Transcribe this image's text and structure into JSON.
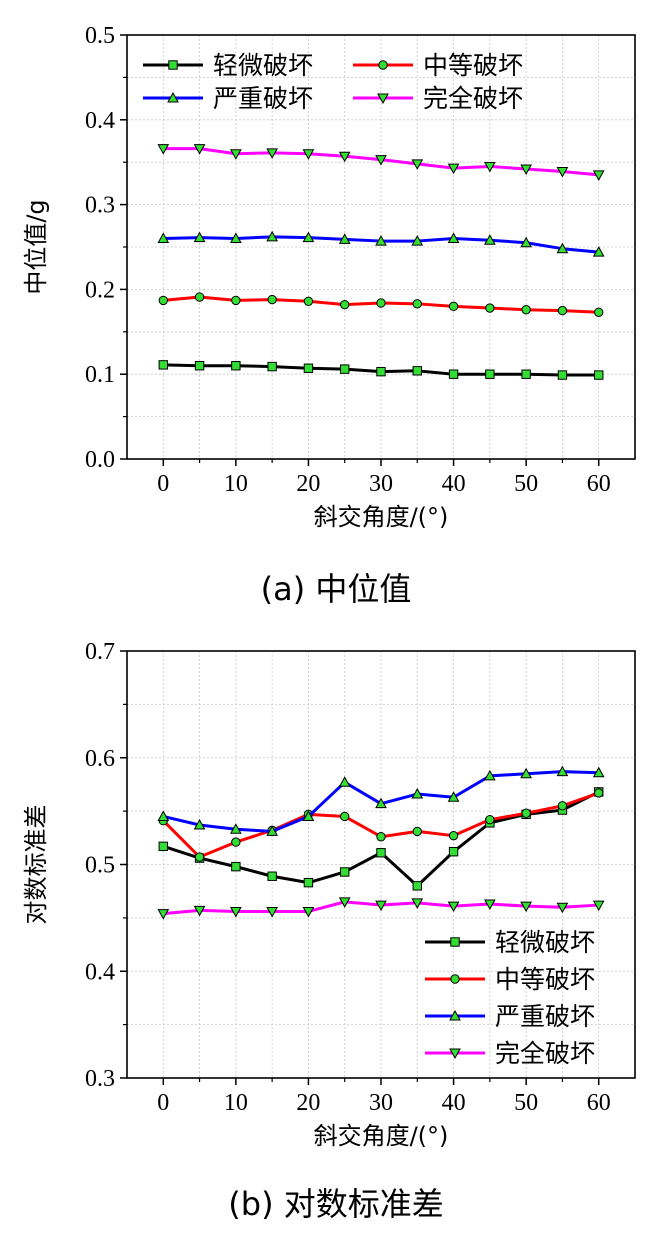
{
  "chart_data": [
    {
      "type": "line",
      "panel": "a",
      "caption": "(a)  中位值",
      "xlabel": "斜交角度/(°)",
      "ylabel": "中位值/g",
      "xlim": [
        -5,
        65
      ],
      "ylim": [
        0.0,
        0.5
      ],
      "xticks": [
        0,
        10,
        20,
        30,
        40,
        50,
        60
      ],
      "yticks": [
        0.0,
        0.1,
        0.2,
        0.3,
        0.4,
        0.5
      ],
      "ytick_labels": [
        "0.0",
        "0.1",
        "0.2",
        "0.3",
        "0.4",
        "0.5"
      ],
      "grid": true,
      "legend_position": "top",
      "legend_columns": 2,
      "x": [
        0,
        5,
        10,
        15,
        20,
        25,
        30,
        35,
        40,
        45,
        50,
        55,
        60
      ],
      "series": [
        {
          "name": "轻微破坏",
          "color": "#000000",
          "marker": "square",
          "values": [
            0.111,
            0.11,
            0.11,
            0.109,
            0.107,
            0.106,
            0.103,
            0.104,
            0.1,
            0.1,
            0.1,
            0.099,
            0.099
          ]
        },
        {
          "name": "中等破坏",
          "color": "#ff0000",
          "marker": "circle",
          "values": [
            0.187,
            0.191,
            0.187,
            0.188,
            0.186,
            0.182,
            0.184,
            0.183,
            0.18,
            0.178,
            0.176,
            0.175,
            0.173
          ]
        },
        {
          "name": "严重破坏",
          "color": "#0000ff",
          "marker": "triangle-up",
          "values": [
            0.26,
            0.261,
            0.26,
            0.262,
            0.261,
            0.259,
            0.257,
            0.257,
            0.26,
            0.258,
            0.255,
            0.248,
            0.244
          ]
        },
        {
          "name": "完全破坏",
          "color": "#ff00ff",
          "marker": "triangle-down",
          "values": [
            0.366,
            0.366,
            0.36,
            0.361,
            0.36,
            0.357,
            0.353,
            0.348,
            0.343,
            0.345,
            0.342,
            0.339,
            0.335
          ]
        }
      ]
    },
    {
      "type": "line",
      "panel": "b",
      "caption": "(b)  对数标准差",
      "xlabel": "斜交角度/(°)",
      "ylabel": "对数标准差",
      "xlim": [
        -5,
        65
      ],
      "ylim": [
        0.3,
        0.7
      ],
      "xticks": [
        0,
        10,
        20,
        30,
        40,
        50,
        60
      ],
      "yticks": [
        0.3,
        0.4,
        0.5,
        0.6,
        0.7
      ],
      "ytick_labels": [
        "0.3",
        "0.4",
        "0.5",
        "0.6",
        "0.7"
      ],
      "grid": true,
      "legend_position": "bottom-right",
      "legend_columns": 1,
      "x": [
        0,
        5,
        10,
        15,
        20,
        25,
        30,
        35,
        40,
        45,
        50,
        55,
        60
      ],
      "series": [
        {
          "name": "轻微破坏",
          "color": "#000000",
          "marker": "square",
          "values": [
            0.517,
            0.506,
            0.498,
            0.489,
            0.483,
            0.493,
            0.511,
            0.48,
            0.512,
            0.539,
            0.547,
            0.551,
            0.568
          ]
        },
        {
          "name": "中等破坏",
          "color": "#ff0000",
          "marker": "circle",
          "values": [
            0.541,
            0.507,
            0.521,
            0.532,
            0.547,
            0.545,
            0.526,
            0.531,
            0.527,
            0.542,
            0.548,
            0.555,
            0.567
          ]
        },
        {
          "name": "严重破坏",
          "color": "#0000ff",
          "marker": "triangle-up",
          "values": [
            0.545,
            0.537,
            0.533,
            0.531,
            0.545,
            0.577,
            0.557,
            0.566,
            0.563,
            0.583,
            0.585,
            0.587,
            0.586
          ]
        },
        {
          "name": "完全破坏",
          "color": "#ff00ff",
          "marker": "triangle-down",
          "values": [
            0.454,
            0.457,
            0.456,
            0.456,
            0.456,
            0.465,
            0.462,
            0.464,
            0.461,
            0.463,
            0.461,
            0.46,
            0.462
          ]
        }
      ]
    }
  ]
}
